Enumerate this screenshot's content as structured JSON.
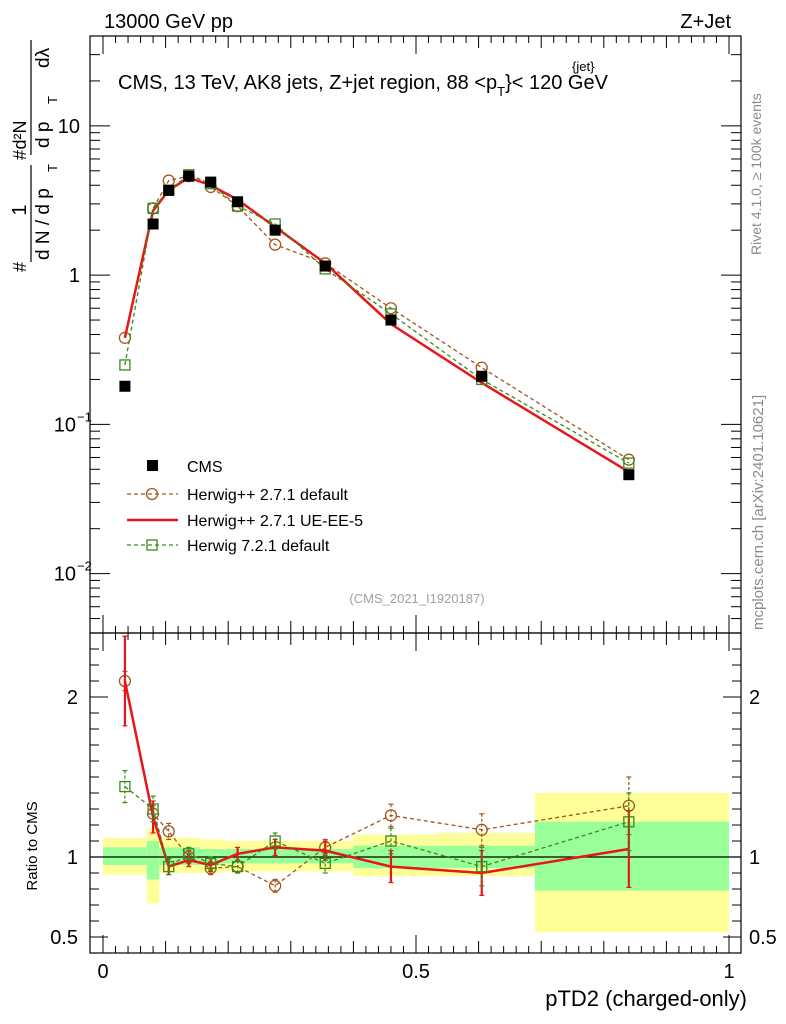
{
  "header": {
    "left": "13000 GeV pp",
    "right": "Z+Jet"
  },
  "side_labels": {
    "rivet": "Rivet 4.1.0, ≥ 100k events",
    "mcplots": "mcplots.cern.ch [arXiv:2401.10621]"
  },
  "chart_data": {
    "type": "line",
    "title": "CMS, 13 TeV, AK8 jets, Z+jet region, 88 <p_T^{jet}< 120 GeV",
    "title_parts": {
      "main": "CMS, 13 TeV, AK8 jets, Z+jet region, 88 <p",
      "sub": "T",
      "sup": "{jet}",
      "tail": "}< 120 GeV"
    },
    "analysis_id": "(CMS_2021_I1920187)",
    "xlabel": "pTD2 (charged-only)",
    "ylabel_ratio": "Ratio to CMS",
    "ylabel_main": "1/N dN/dpT dlambda",
    "ylabel_parts": {
      "hash": "#",
      "one": "1",
      "denom": "d N / d p",
      "t": "T",
      "numer": "d²N",
      "dpt": "d p",
      "dlam": "dλ"
    },
    "xlim": [
      0,
      1
    ],
    "ylim_main": [
      0.004,
      40
    ],
    "ylim_ratio": [
      0.4,
      2.4
    ],
    "x_ticks": [
      {
        "v": 0,
        "label": "0"
      },
      {
        "v": 0.5,
        "label": "0.5"
      },
      {
        "v": 1,
        "label": "1"
      }
    ],
    "y_ticks_main": [
      {
        "v": 0.01,
        "base": "10",
        "exp": "−2"
      },
      {
        "v": 0.1,
        "base": "10",
        "exp": "−1"
      },
      {
        "v": 1,
        "base": "1",
        "exp": ""
      },
      {
        "v": 10,
        "base": "10",
        "exp": ""
      }
    ],
    "y_ticks_ratio": [
      {
        "v": 0.5,
        "label": "0.5"
      },
      {
        "v": 1,
        "label": "1"
      },
      {
        "v": 2,
        "label": "2"
      }
    ],
    "bins": [
      {
        "lo": 0.0,
        "hi": 0.07,
        "x": 0.035
      },
      {
        "lo": 0.07,
        "hi": 0.09,
        "x": 0.08
      },
      {
        "lo": 0.09,
        "hi": 0.12,
        "x": 0.105
      },
      {
        "lo": 0.12,
        "hi": 0.155,
        "x": 0.137
      },
      {
        "lo": 0.155,
        "hi": 0.19,
        "x": 0.172
      },
      {
        "lo": 0.19,
        "hi": 0.24,
        "x": 0.215
      },
      {
        "lo": 0.24,
        "hi": 0.31,
        "x": 0.275
      },
      {
        "lo": 0.31,
        "hi": 0.4,
        "x": 0.355
      },
      {
        "lo": 0.4,
        "hi": 0.53,
        "x": 0.46
      },
      {
        "lo": 0.53,
        "hi": 0.69,
        "x": 0.605
      },
      {
        "lo": 0.69,
        "hi": 1.0,
        "x": 0.84
      }
    ],
    "data": {
      "name": "CMS",
      "values": [
        0.18,
        2.2,
        3.7,
        4.6,
        4.2,
        3.1,
        2.0,
        1.15,
        0.5,
        0.21,
        0.046
      ],
      "band_stat": [
        [
          0.95,
          1.06
        ],
        [
          0.86,
          1.1
        ],
        [
          0.95,
          1.06
        ],
        [
          0.95,
          1.06
        ],
        [
          0.95,
          1.05
        ],
        [
          0.96,
          1.05
        ],
        [
          0.96,
          1.05
        ],
        [
          0.96,
          1.05
        ],
        [
          0.93,
          1.07
        ],
        [
          0.93,
          1.07
        ],
        [
          0.79,
          1.22
        ]
      ],
      "band_total": [
        [
          0.89,
          1.12
        ],
        [
          0.71,
          1.18
        ],
        [
          0.9,
          1.12
        ],
        [
          0.9,
          1.12
        ],
        [
          0.9,
          1.11
        ],
        [
          0.91,
          1.1
        ],
        [
          0.91,
          1.1
        ],
        [
          0.91,
          1.1
        ],
        [
          0.88,
          1.14
        ],
        [
          0.88,
          1.15
        ],
        [
          0.53,
          1.4
        ]
      ]
    },
    "series": [
      {
        "name": "Herwig++ 2.7.1 default",
        "color": "#a0571e",
        "style": "dashed",
        "marker": "circle",
        "values": [
          0.38,
          2.8,
          4.3,
          4.6,
          3.9,
          2.9,
          1.6,
          1.2,
          0.6,
          0.24,
          0.058
        ],
        "ratio": [
          2.1,
          1.27,
          1.16,
          1.0,
          0.93,
          0.94,
          0.82,
          1.06,
          1.26,
          1.17,
          1.32
        ],
        "ratio_err": [
          0.06,
          0.05,
          0.05,
          0.04,
          0.04,
          0.04,
          0.04,
          0.05,
          0.07,
          0.1,
          0.18
        ]
      },
      {
        "name": "Herwig++ 2.7.1 UE-EE-5",
        "color": "#e8151a",
        "style": "solid",
        "marker": "none",
        "values": [
          0.38,
          2.7,
          3.7,
          4.5,
          4.0,
          3.2,
          2.1,
          1.2,
          0.47,
          0.19,
          0.048
        ],
        "ratio": [
          2.1,
          1.25,
          0.94,
          0.98,
          0.95,
          1.02,
          1.06,
          1.04,
          0.94,
          0.9,
          1.05
        ],
        "ratio_err": [
          0.28,
          0.1,
          0.05,
          0.04,
          0.04,
          0.04,
          0.05,
          0.06,
          0.1,
          0.14,
          0.24
        ]
      },
      {
        "name": "Herwig 7.2.1 default",
        "color": "#3a8a1a",
        "style": "dashed",
        "marker": "square",
        "values": [
          0.25,
          2.8,
          3.7,
          4.7,
          4.1,
          2.9,
          2.2,
          1.1,
          0.55,
          0.2,
          0.055
        ],
        "ratio": [
          1.44,
          1.3,
          0.94,
          1.02,
          0.96,
          0.94,
          1.1,
          0.96,
          1.1,
          0.94,
          1.22
        ],
        "ratio_err": [
          0.1,
          0.08,
          0.05,
          0.04,
          0.04,
          0.04,
          0.05,
          0.06,
          0.08,
          0.12,
          0.18
        ]
      }
    ]
  }
}
